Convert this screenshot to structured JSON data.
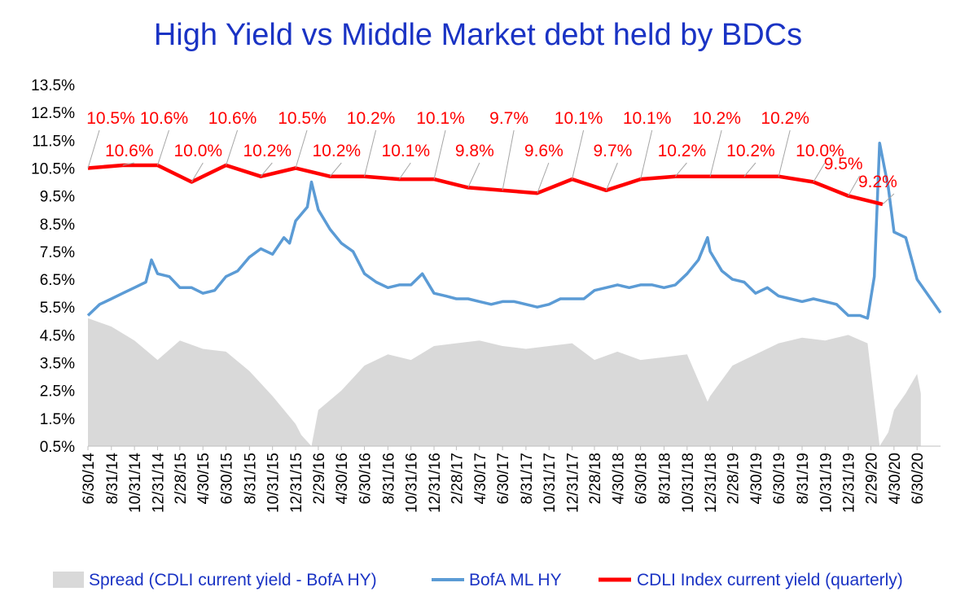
{
  "chart_data": {
    "type": "line",
    "title": "High Yield  vs  Middle Market debt held by BDCs",
    "xlabel": "",
    "ylabel": "",
    "ylim": [
      0.5,
      13.5
    ],
    "y_ticks": [
      "0.5%",
      "1.5%",
      "2.5%",
      "3.5%",
      "4.5%",
      "5.5%",
      "6.5%",
      "7.5%",
      "8.5%",
      "9.5%",
      "10.5%",
      "11.5%",
      "12.5%",
      "13.5%"
    ],
    "x_range": [
      "2014-06-30",
      "2020-08-31"
    ],
    "x_ticks": [
      "6/30/14",
      "8/31/14",
      "10/31/14",
      "12/31/14",
      "2/28/15",
      "4/30/15",
      "6/30/15",
      "8/31/15",
      "10/31/15",
      "12/31/15",
      "2/29/16",
      "4/30/16",
      "6/30/16",
      "8/31/16",
      "10/31/16",
      "12/31/16",
      "2/28/17",
      "4/30/17",
      "6/30/17",
      "8/31/17",
      "10/31/17",
      "12/31/17",
      "2/28/18",
      "4/30/18",
      "6/30/18",
      "8/31/18",
      "10/31/18",
      "12/31/18",
      "2/28/19",
      "4/30/19",
      "6/30/19",
      "8/31/19",
      "10/31/19",
      "12/31/19",
      "2/29/20",
      "4/30/20",
      "6/30/20"
    ],
    "grid": false,
    "legend": "bottom",
    "series": [
      {
        "name": "Spread (CDLI current yield - BofA HY)",
        "type": "area",
        "color": "#d9d9d9",
        "x": [
          "2014-06-30",
          "2014-08-31",
          "2014-10-31",
          "2014-12-31",
          "2015-02-28",
          "2015-04-30",
          "2015-06-30",
          "2015-08-31",
          "2015-10-31",
          "2015-12-31",
          "2016-01-15",
          "2016-02-11",
          "2016-02-29",
          "2016-04-30",
          "2016-06-30",
          "2016-08-31",
          "2016-10-31",
          "2016-12-31",
          "2017-02-28",
          "2017-04-30",
          "2017-06-30",
          "2017-08-31",
          "2017-10-31",
          "2017-12-31",
          "2018-02-28",
          "2018-04-30",
          "2018-06-30",
          "2018-08-31",
          "2018-10-31",
          "2018-12-24",
          "2018-12-31",
          "2019-02-28",
          "2019-04-30",
          "2019-06-30",
          "2019-08-31",
          "2019-10-31",
          "2019-12-31",
          "2020-02-20",
          "2020-03-23",
          "2020-04-15",
          "2020-04-30",
          "2020-05-31",
          "2020-06-30",
          "2020-07-10"
        ],
        "values": [
          5.1,
          4.8,
          4.3,
          3.6,
          4.3,
          4.0,
          3.9,
          3.2,
          2.3,
          1.3,
          0.9,
          0.5,
          1.8,
          2.5,
          3.4,
          3.8,
          3.6,
          4.1,
          4.2,
          4.3,
          4.1,
          4.0,
          4.1,
          4.2,
          3.6,
          3.9,
          3.6,
          3.7,
          3.8,
          2.1,
          2.3,
          3.4,
          3.8,
          4.2,
          4.4,
          4.3,
          4.5,
          4.2,
          0.5,
          1.0,
          1.8,
          2.4,
          3.1,
          2.4
        ]
      },
      {
        "name": "BofA ML HY",
        "type": "line",
        "color": "#5b9bd5",
        "x": [
          "2014-06-30",
          "2014-07-31",
          "2014-08-31",
          "2014-09-30",
          "2014-10-31",
          "2014-11-30",
          "2014-12-15",
          "2014-12-31",
          "2015-01-31",
          "2015-02-28",
          "2015-03-31",
          "2015-04-30",
          "2015-05-31",
          "2015-06-30",
          "2015-07-31",
          "2015-08-31",
          "2015-09-30",
          "2015-10-31",
          "2015-11-30",
          "2015-12-15",
          "2015-12-31",
          "2016-01-31",
          "2016-02-11",
          "2016-02-29",
          "2016-03-31",
          "2016-04-30",
          "2016-05-31",
          "2016-06-30",
          "2016-07-31",
          "2016-08-31",
          "2016-09-30",
          "2016-10-31",
          "2016-11-30",
          "2016-12-31",
          "2017-01-31",
          "2017-02-28",
          "2017-03-31",
          "2017-04-30",
          "2017-05-31",
          "2017-06-30",
          "2017-07-31",
          "2017-08-31",
          "2017-09-30",
          "2017-10-31",
          "2017-11-30",
          "2017-12-31",
          "2018-01-31",
          "2018-02-28",
          "2018-03-31",
          "2018-04-30",
          "2018-05-31",
          "2018-06-30",
          "2018-07-31",
          "2018-08-31",
          "2018-09-30",
          "2018-10-31",
          "2018-11-30",
          "2018-12-24",
          "2018-12-31",
          "2019-01-31",
          "2019-02-28",
          "2019-03-31",
          "2019-04-30",
          "2019-05-31",
          "2019-06-30",
          "2019-07-31",
          "2019-08-31",
          "2019-09-30",
          "2019-10-31",
          "2019-11-30",
          "2019-12-31",
          "2020-01-31",
          "2020-02-20",
          "2020-03-09",
          "2020-03-23",
          "2020-04-15",
          "2020-04-30",
          "2020-05-31",
          "2020-06-30",
          "2020-07-31",
          "2020-08-31"
        ],
        "values": [
          5.2,
          5.6,
          5.8,
          6.0,
          6.2,
          6.4,
          7.2,
          6.7,
          6.6,
          6.2,
          6.2,
          6.0,
          6.1,
          6.6,
          6.8,
          7.3,
          7.6,
          7.4,
          8.0,
          7.8,
          8.6,
          9.1,
          10.0,
          9.0,
          8.3,
          7.8,
          7.5,
          6.7,
          6.4,
          6.2,
          6.3,
          6.3,
          6.7,
          6.0,
          5.9,
          5.8,
          5.8,
          5.7,
          5.6,
          5.7,
          5.7,
          5.6,
          5.5,
          5.6,
          5.8,
          5.8,
          5.8,
          6.1,
          6.2,
          6.3,
          6.2,
          6.3,
          6.3,
          6.2,
          6.3,
          6.7,
          7.2,
          8.0,
          7.5,
          6.8,
          6.5,
          6.4,
          6.0,
          6.2,
          5.9,
          5.8,
          5.7,
          5.8,
          5.7,
          5.6,
          5.2,
          5.2,
          5.1,
          6.6,
          11.4,
          9.8,
          8.2,
          8.0,
          6.5,
          5.9,
          5.3
        ]
      },
      {
        "name": "CDLI Index current yield (quarterly)",
        "type": "line",
        "color": "#ff0000",
        "x": [
          "2014-06-30",
          "2014-09-30",
          "2014-12-31",
          "2015-03-31",
          "2015-06-30",
          "2015-09-30",
          "2015-12-31",
          "2016-03-31",
          "2016-06-30",
          "2016-09-30",
          "2016-12-31",
          "2017-03-31",
          "2017-06-30",
          "2017-09-30",
          "2017-12-31",
          "2018-03-31",
          "2018-06-30",
          "2018-09-30",
          "2018-12-31",
          "2019-03-31",
          "2019-06-30",
          "2019-09-30",
          "2019-12-31",
          "2020-03-31"
        ],
        "values": [
          10.5,
          10.6,
          10.6,
          10.0,
          10.6,
          10.2,
          10.5,
          10.2,
          10.2,
          10.1,
          10.1,
          9.8,
          9.7,
          9.6,
          10.1,
          9.7,
          10.1,
          10.2,
          10.2,
          10.2,
          10.2,
          10.0,
          9.5,
          9.2
        ],
        "labels": [
          "10.5%",
          "10.6%",
          "10.6%",
          "10.0%",
          "10.6%",
          "10.2%",
          "10.5%",
          "10.2%",
          "10.2%",
          "10.1%",
          "10.1%",
          "9.8%",
          "9.7%",
          "9.6%",
          "10.1%",
          "9.7%",
          "10.1%",
          "10.2%",
          "10.2%",
          "10.2%",
          "10.2%",
          "10.0%",
          "9.5%",
          "9.2%"
        ]
      }
    ]
  }
}
